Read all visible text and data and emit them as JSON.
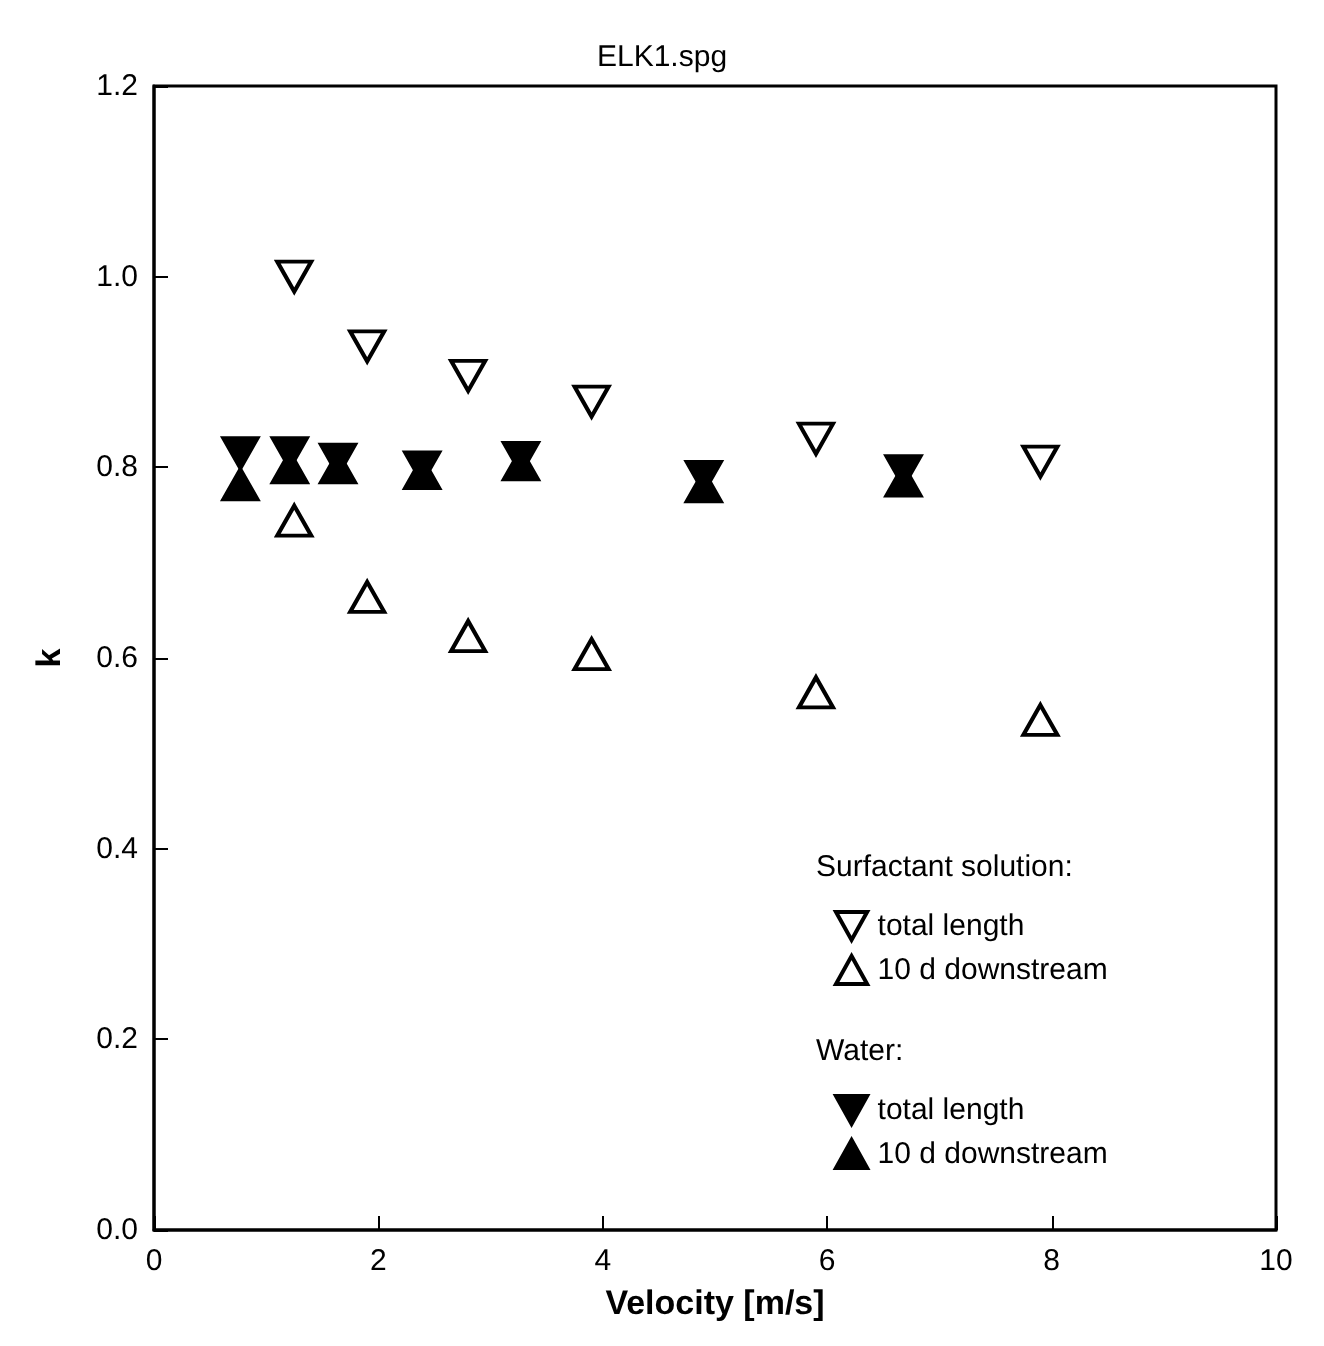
{
  "chart_data": {
    "type": "scatter",
    "title": "ELK1.spg",
    "xlabel": "Velocity [m/s]",
    "ylabel": "k",
    "annotations": [
      "Surfactant solution:",
      "Water:"
    ],
    "xlim": [
      0,
      10
    ],
    "xticks": [
      0,
      2,
      4,
      6,
      8,
      10
    ],
    "ylim": [
      0,
      1.2
    ],
    "yticks": [
      {
        "value": 0,
        "label": "0.0"
      },
      {
        "value": 0.2,
        "label": "0.2"
      },
      {
        "value": 0.4,
        "label": "0.4"
      },
      {
        "value": 0.6,
        "label": "0.6"
      },
      {
        "value": 0.8,
        "label": "0.8"
      },
      {
        "value": 1,
        "label": "1.0"
      },
      {
        "value": 1.2,
        "label": "1.2"
      }
    ],
    "grid": false,
    "legend": "bottom right",
    "series": [
      {
        "name": "total length",
        "color": "#000000",
        "marker": "triangle-down-open",
        "x": [
          1.25,
          1.9,
          2.8,
          3.9,
          5.9,
          7.9
        ],
        "values": [
          1.0,
          0.927,
          0.896,
          0.869,
          0.83,
          0.806
        ]
      },
      {
        "name": "10 d downstream",
        "color": "#000000",
        "marker": "triangle-open",
        "x": [
          1.25,
          1.9,
          2.8,
          3.9,
          5.9,
          7.9
        ],
        "values": [
          0.744,
          0.664,
          0.623,
          0.604,
          0.564,
          0.535
        ]
      },
      {
        "name": "total length",
        "color": "#000000",
        "marker": "triangle-down",
        "x": [
          0.77,
          1.21,
          1.64,
          2.39,
          3.27,
          4.9,
          6.68
        ],
        "values": [
          0.815,
          0.815,
          0.808,
          0.8,
          0.81,
          0.79,
          0.796
        ]
      },
      {
        "name": "10 d downstream",
        "color": "#000000",
        "marker": "triangle",
        "x": [
          0.77,
          1.21,
          1.64,
          2.39,
          3.27,
          4.9,
          6.68
        ],
        "values": [
          0.782,
          0.8,
          0.8,
          0.794,
          0.803,
          0.78,
          0.786
        ]
      }
    ]
  }
}
